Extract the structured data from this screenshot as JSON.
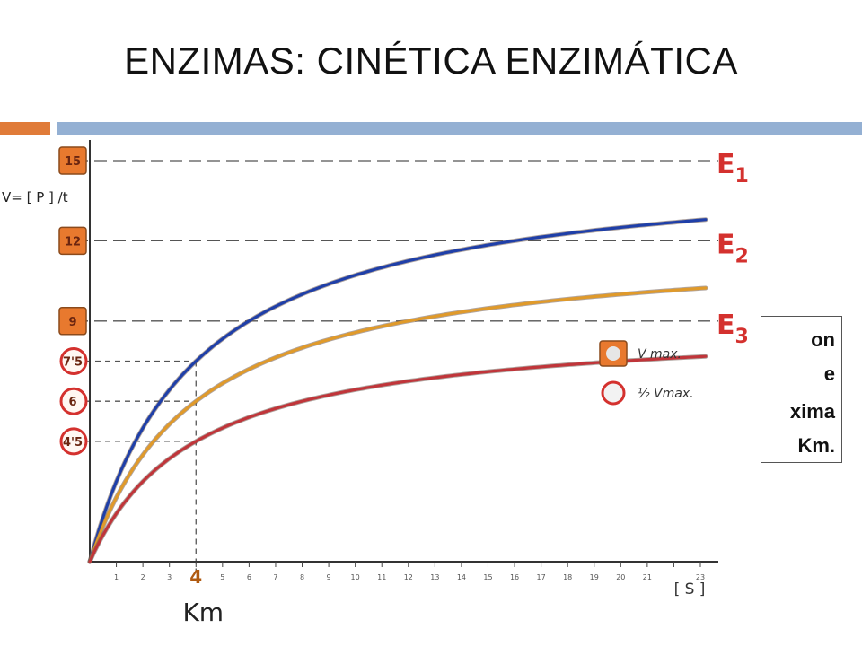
{
  "slide": {
    "title": "ENZIMAS: CINÉTICA ENZIMÁTICA",
    "callout_lines": [
      "on",
      "e",
      "xima",
      "Km."
    ],
    "accent_colors": {
      "orange_bar": "#e07b39",
      "blue_bar": "#94b0d3"
    }
  },
  "chart_data": {
    "type": "line",
    "ylabel": "V= [ P ] /t",
    "xlabel": "[ S ]",
    "km_label": "Km",
    "km_value": 4,
    "x_ticks": [
      "1",
      "2",
      "3",
      "4",
      "5",
      "6",
      "7",
      "8",
      "9",
      "10",
      "11",
      "12",
      "13",
      "14",
      "15",
      "16",
      "17",
      "18",
      "19",
      "20",
      "21",
      "",
      "23"
    ],
    "xlim": [
      0,
      24
    ],
    "ylim": [
      0,
      16
    ],
    "y_ticks": [
      {
        "label": "15",
        "value": 15,
        "marker": "vmax"
      },
      {
        "label": "12",
        "value": 12,
        "marker": "vmax"
      },
      {
        "label": "9",
        "value": 9,
        "marker": "vmax"
      },
      {
        "label": "7'5",
        "value": 7.5,
        "marker": "half"
      },
      {
        "label": "6",
        "value": 6,
        "marker": "half"
      },
      {
        "label": "4'5",
        "value": 4.5,
        "marker": "half"
      }
    ],
    "series": [
      {
        "name": "E1",
        "vmax": 15,
        "km": 4,
        "color": "#1f3fa8"
      },
      {
        "name": "E2",
        "vmax": 12,
        "km": 4,
        "color": "#e09a2a"
      },
      {
        "name": "E3",
        "vmax": 9,
        "km": 4,
        "color": "#c0353a"
      }
    ],
    "series_labels": [
      {
        "sub": "1",
        "series": "E1"
      },
      {
        "sub": "2",
        "series": "E2"
      },
      {
        "sub": "3",
        "series": "E3"
      }
    ],
    "legend": {
      "position": "right",
      "items": [
        {
          "label": "V max.",
          "marker": "vmax"
        },
        {
          "label": "½ Vmax.",
          "marker": "half"
        }
      ]
    },
    "marker_colors": {
      "vmax": "#e8792e",
      "half": "#d4312e",
      "tick_text": "#6a2510"
    }
  }
}
